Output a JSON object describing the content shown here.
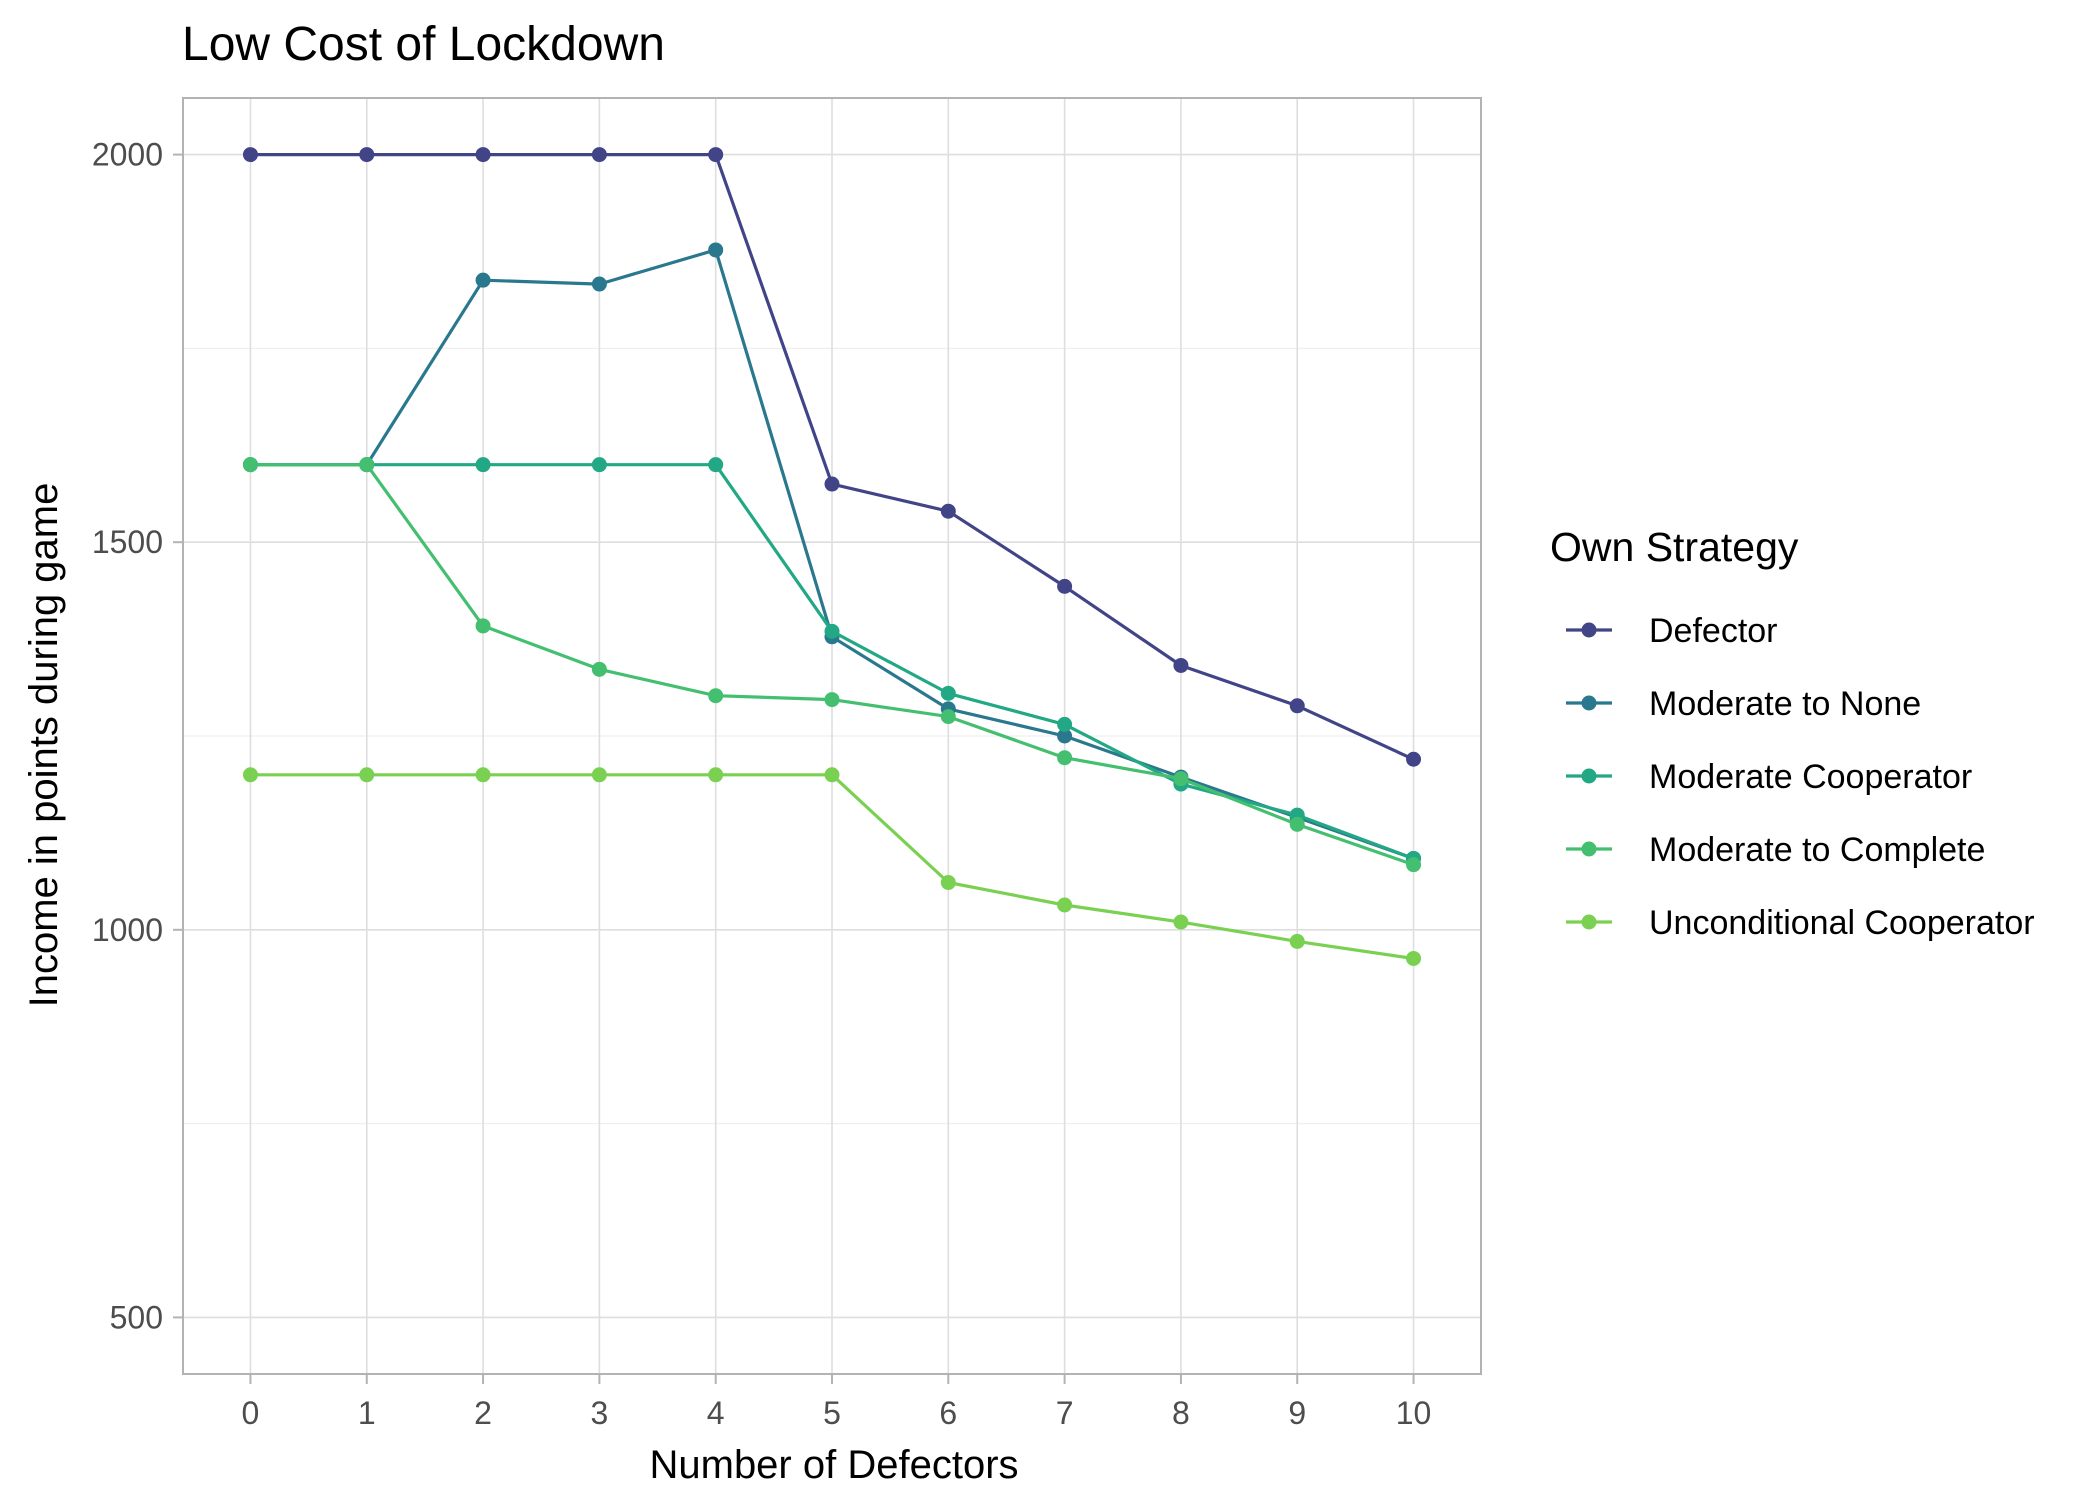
{
  "chart_data": {
    "type": "line",
    "title": "Low Cost of Lockdown",
    "xlabel": "Number of Defectors",
    "ylabel": "Income in points during game",
    "x": [
      0,
      1,
      2,
      3,
      4,
      5,
      6,
      7,
      8,
      9,
      10
    ],
    "x_tick_labels": [
      "0",
      "1",
      "2",
      "3",
      "4",
      "5",
      "6",
      "7",
      "8",
      "9",
      "10"
    ],
    "xlim": [
      -0.58,
      10.58
    ],
    "ylim": [
      427,
      2073
    ],
    "y_ticks": [
      500,
      1000,
      1500,
      2000
    ],
    "y_tick_labels": [
      "500",
      "1000",
      "1500",
      "2000"
    ],
    "y_minor_ticks": [
      750,
      1250,
      1750
    ],
    "grid": true,
    "legend": {
      "title": "Own Strategy",
      "position": "right"
    },
    "series": [
      {
        "name": "Defector",
        "color": "#414487",
        "values": [
          2000,
          2000,
          2000,
          2000,
          2000,
          1575,
          1540,
          1443,
          1341,
          1289,
          1220
        ]
      },
      {
        "name": "Moderate to None",
        "color": "#2A788E",
        "values": [
          1600,
          1600,
          1838,
          1833,
          1877,
          1378,
          1285,
          1250,
          1197,
          1145,
          1092
        ]
      },
      {
        "name": "Moderate Cooperator",
        "color": "#22A884",
        "values": [
          1600,
          1600,
          1600,
          1600,
          1600,
          1385,
          1305,
          1265,
          1188,
          1148,
          1092
        ]
      },
      {
        "name": "Moderate to Complete",
        "color": "#44BF70",
        "values": [
          1600,
          1600,
          1392,
          1336,
          1302,
          1297,
          1275,
          1222,
          1195,
          1136,
          1084
        ]
      },
      {
        "name": "Unconditional Cooperator",
        "color": "#7AD151",
        "values": [
          1200,
          1200,
          1200,
          1200,
          1200,
          1200,
          1061,
          1032,
          1010,
          985,
          963
        ]
      }
    ]
  }
}
